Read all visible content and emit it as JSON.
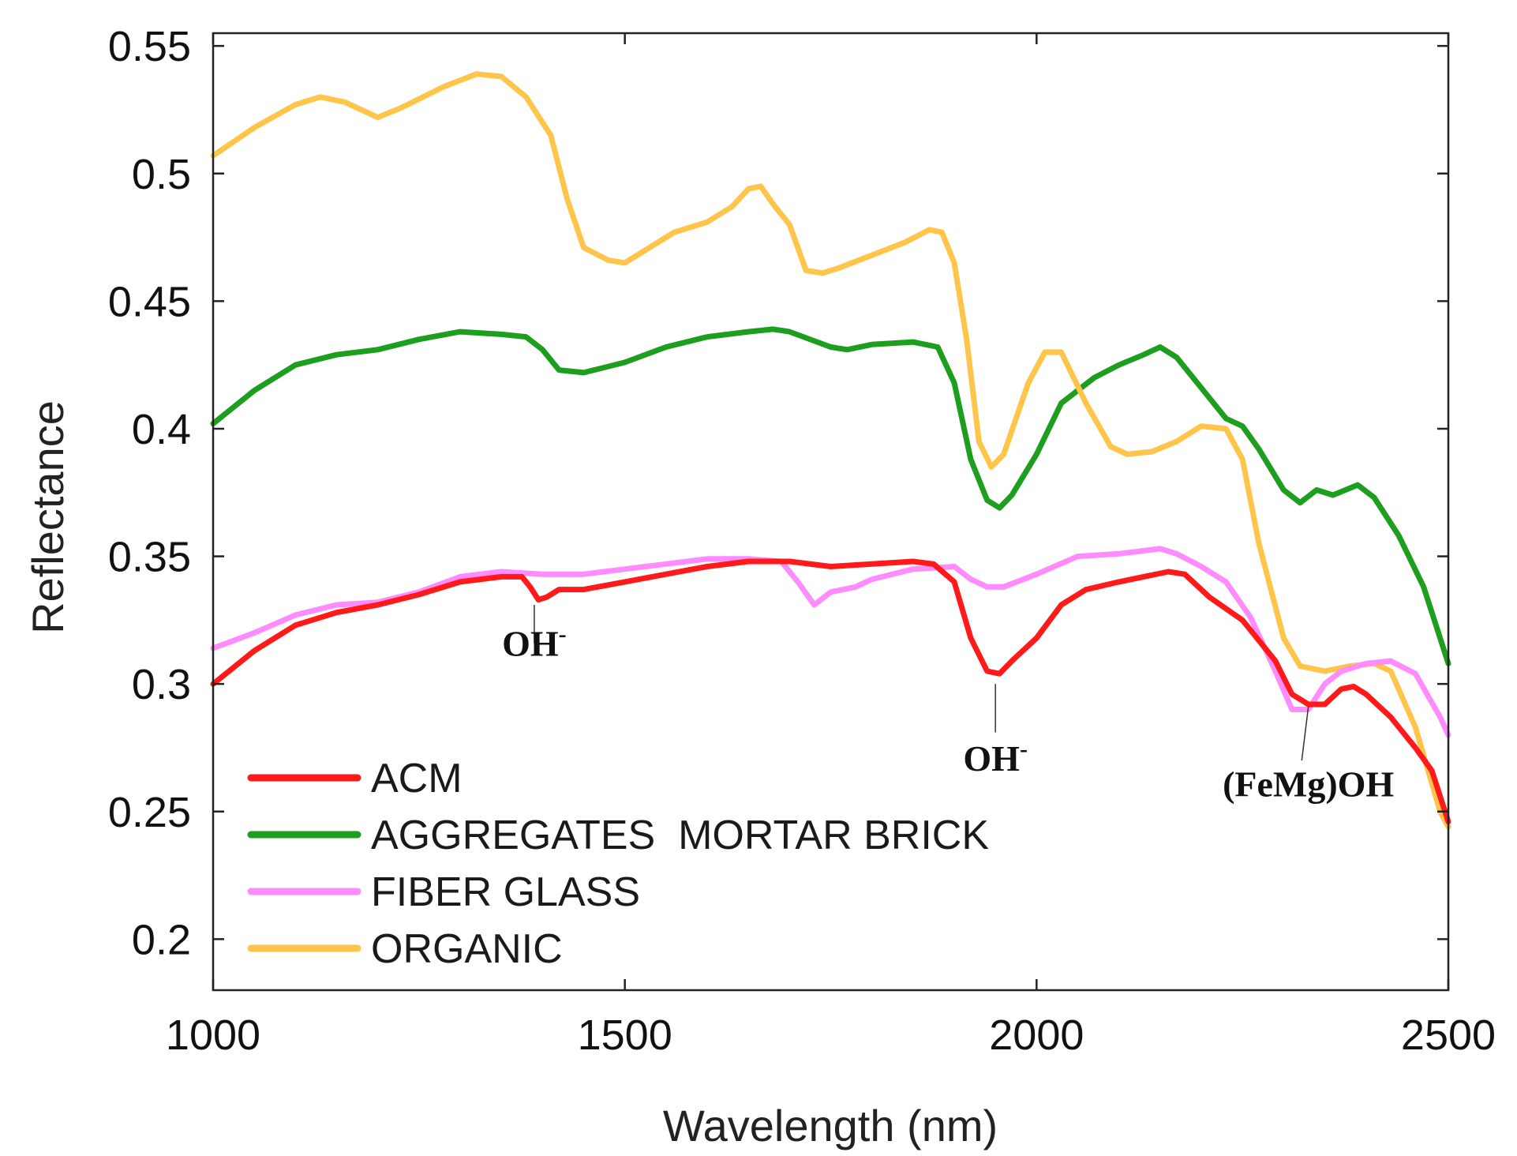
{
  "chart_data": {
    "type": "line",
    "xlabel": "Wavelength (nm)",
    "ylabel": "Reflectance",
    "xlim": [
      1000,
      2500
    ],
    "ylim": [
      0.18,
      0.555
    ],
    "x_ticks": [
      1000,
      1500,
      2000,
      2500
    ],
    "x_tick_labels": [
      "1000",
      "1500",
      "2000",
      "2500"
    ],
    "y_ticks": [
      0.2,
      0.25,
      0.3,
      0.35,
      0.4,
      0.45,
      0.5,
      0.55
    ],
    "y_tick_labels": [
      "0.2",
      "0.25",
      "0.3",
      "0.35",
      "0.4",
      "0.45",
      "0.5",
      "0.55"
    ],
    "grid": false,
    "legend_position": "bottom-left",
    "series": [
      {
        "name": "ACM",
        "color": "#ff1a1a",
        "points": [
          [
            1000,
            0.3
          ],
          [
            1050,
            0.313
          ],
          [
            1100,
            0.323
          ],
          [
            1150,
            0.328
          ],
          [
            1200,
            0.331
          ],
          [
            1250,
            0.335
          ],
          [
            1300,
            0.34
          ],
          [
            1350,
            0.342
          ],
          [
            1375,
            0.342
          ],
          [
            1385,
            0.338
          ],
          [
            1395,
            0.333
          ],
          [
            1405,
            0.334
          ],
          [
            1420,
            0.337
          ],
          [
            1450,
            0.337
          ],
          [
            1500,
            0.34
          ],
          [
            1550,
            0.343
          ],
          [
            1600,
            0.346
          ],
          [
            1650,
            0.348
          ],
          [
            1700,
            0.348
          ],
          [
            1750,
            0.346
          ],
          [
            1800,
            0.347
          ],
          [
            1850,
            0.348
          ],
          [
            1875,
            0.347
          ],
          [
            1900,
            0.34
          ],
          [
            1920,
            0.318
          ],
          [
            1940,
            0.305
          ],
          [
            1955,
            0.304
          ],
          [
            1970,
            0.309
          ],
          [
            2000,
            0.318
          ],
          [
            2030,
            0.331
          ],
          [
            2060,
            0.337
          ],
          [
            2100,
            0.34
          ],
          [
            2130,
            0.342
          ],
          [
            2160,
            0.344
          ],
          [
            2180,
            0.343
          ],
          [
            2210,
            0.334
          ],
          [
            2250,
            0.325
          ],
          [
            2290,
            0.309
          ],
          [
            2310,
            0.296
          ],
          [
            2330,
            0.292
          ],
          [
            2350,
            0.292
          ],
          [
            2370,
            0.298
          ],
          [
            2385,
            0.299
          ],
          [
            2400,
            0.296
          ],
          [
            2430,
            0.287
          ],
          [
            2460,
            0.275
          ],
          [
            2480,
            0.266
          ],
          [
            2500,
            0.246
          ]
        ]
      },
      {
        "name": "AGGREGATES  MORTAR BRICK",
        "color": "#1e9e1e",
        "points": [
          [
            1000,
            0.402
          ],
          [
            1050,
            0.415
          ],
          [
            1100,
            0.425
          ],
          [
            1150,
            0.429
          ],
          [
            1200,
            0.431
          ],
          [
            1250,
            0.435
          ],
          [
            1300,
            0.438
          ],
          [
            1350,
            0.437
          ],
          [
            1380,
            0.436
          ],
          [
            1400,
            0.431
          ],
          [
            1420,
            0.423
          ],
          [
            1450,
            0.422
          ],
          [
            1500,
            0.426
          ],
          [
            1550,
            0.432
          ],
          [
            1600,
            0.436
          ],
          [
            1650,
            0.438
          ],
          [
            1680,
            0.439
          ],
          [
            1700,
            0.438
          ],
          [
            1750,
            0.432
          ],
          [
            1770,
            0.431
          ],
          [
            1800,
            0.433
          ],
          [
            1850,
            0.434
          ],
          [
            1880,
            0.432
          ],
          [
            1900,
            0.418
          ],
          [
            1920,
            0.388
          ],
          [
            1940,
            0.372
          ],
          [
            1955,
            0.369
          ],
          [
            1970,
            0.374
          ],
          [
            2000,
            0.39
          ],
          [
            2030,
            0.41
          ],
          [
            2070,
            0.42
          ],
          [
            2100,
            0.425
          ],
          [
            2130,
            0.429
          ],
          [
            2150,
            0.432
          ],
          [
            2170,
            0.428
          ],
          [
            2200,
            0.416
          ],
          [
            2230,
            0.404
          ],
          [
            2250,
            0.401
          ],
          [
            2270,
            0.392
          ],
          [
            2300,
            0.376
          ],
          [
            2320,
            0.371
          ],
          [
            2340,
            0.376
          ],
          [
            2360,
            0.374
          ],
          [
            2390,
            0.378
          ],
          [
            2410,
            0.373
          ],
          [
            2440,
            0.358
          ],
          [
            2470,
            0.338
          ],
          [
            2500,
            0.308
          ]
        ]
      },
      {
        "name": "FIBER GLASS",
        "color": "#ff8cff",
        "points": [
          [
            1000,
            0.314
          ],
          [
            1050,
            0.32
          ],
          [
            1100,
            0.327
          ],
          [
            1150,
            0.331
          ],
          [
            1200,
            0.332
          ],
          [
            1250,
            0.336
          ],
          [
            1300,
            0.342
          ],
          [
            1350,
            0.344
          ],
          [
            1400,
            0.343
          ],
          [
            1450,
            0.343
          ],
          [
            1500,
            0.345
          ],
          [
            1550,
            0.347
          ],
          [
            1600,
            0.349
          ],
          [
            1650,
            0.349
          ],
          [
            1690,
            0.348
          ],
          [
            1710,
            0.34
          ],
          [
            1730,
            0.331
          ],
          [
            1750,
            0.336
          ],
          [
            1780,
            0.338
          ],
          [
            1800,
            0.341
          ],
          [
            1850,
            0.345
          ],
          [
            1900,
            0.346
          ],
          [
            1920,
            0.341
          ],
          [
            1940,
            0.338
          ],
          [
            1960,
            0.338
          ],
          [
            2000,
            0.343
          ],
          [
            2050,
            0.35
          ],
          [
            2100,
            0.351
          ],
          [
            2150,
            0.353
          ],
          [
            2170,
            0.351
          ],
          [
            2200,
            0.346
          ],
          [
            2230,
            0.34
          ],
          [
            2260,
            0.326
          ],
          [
            2290,
            0.305
          ],
          [
            2310,
            0.29
          ],
          [
            2330,
            0.29
          ],
          [
            2350,
            0.3
          ],
          [
            2370,
            0.305
          ],
          [
            2400,
            0.308
          ],
          [
            2430,
            0.309
          ],
          [
            2460,
            0.304
          ],
          [
            2490,
            0.287
          ],
          [
            2500,
            0.28
          ]
        ]
      },
      {
        "name": "ORGANIC",
        "color": "#ffc44a",
        "points": [
          [
            1000,
            0.507
          ],
          [
            1050,
            0.518
          ],
          [
            1100,
            0.527
          ],
          [
            1130,
            0.53
          ],
          [
            1160,
            0.528
          ],
          [
            1200,
            0.522
          ],
          [
            1230,
            0.526
          ],
          [
            1280,
            0.534
          ],
          [
            1320,
            0.539
          ],
          [
            1350,
            0.538
          ],
          [
            1380,
            0.53
          ],
          [
            1410,
            0.515
          ],
          [
            1430,
            0.49
          ],
          [
            1450,
            0.471
          ],
          [
            1480,
            0.466
          ],
          [
            1500,
            0.465
          ],
          [
            1530,
            0.471
          ],
          [
            1560,
            0.477
          ],
          [
            1600,
            0.481
          ],
          [
            1630,
            0.487
          ],
          [
            1650,
            0.494
          ],
          [
            1665,
            0.495
          ],
          [
            1680,
            0.488
          ],
          [
            1700,
            0.48
          ],
          [
            1720,
            0.462
          ],
          [
            1740,
            0.461
          ],
          [
            1760,
            0.463
          ],
          [
            1800,
            0.468
          ],
          [
            1840,
            0.473
          ],
          [
            1870,
            0.478
          ],
          [
            1885,
            0.477
          ],
          [
            1900,
            0.465
          ],
          [
            1915,
            0.435
          ],
          [
            1930,
            0.395
          ],
          [
            1945,
            0.385
          ],
          [
            1960,
            0.39
          ],
          [
            1990,
            0.418
          ],
          [
            2010,
            0.43
          ],
          [
            2030,
            0.43
          ],
          [
            2060,
            0.41
          ],
          [
            2090,
            0.393
          ],
          [
            2110,
            0.39
          ],
          [
            2140,
            0.391
          ],
          [
            2170,
            0.395
          ],
          [
            2200,
            0.401
          ],
          [
            2230,
            0.4
          ],
          [
            2250,
            0.388
          ],
          [
            2270,
            0.355
          ],
          [
            2300,
            0.318
          ],
          [
            2320,
            0.307
          ],
          [
            2350,
            0.305
          ],
          [
            2380,
            0.307
          ],
          [
            2410,
            0.308
          ],
          [
            2430,
            0.305
          ],
          [
            2460,
            0.283
          ],
          [
            2490,
            0.25
          ],
          [
            2500,
            0.244
          ]
        ]
      }
    ],
    "annotations": [
      {
        "text": "OH",
        "sup": "-",
        "x": 1390,
        "y": 0.311
      },
      {
        "text": "OH",
        "sup": "-",
        "x": 1950,
        "y": 0.266
      },
      {
        "text": "(FeMg)OH",
        "sup": "",
        "x": 2330,
        "y": 0.256
      }
    ]
  }
}
